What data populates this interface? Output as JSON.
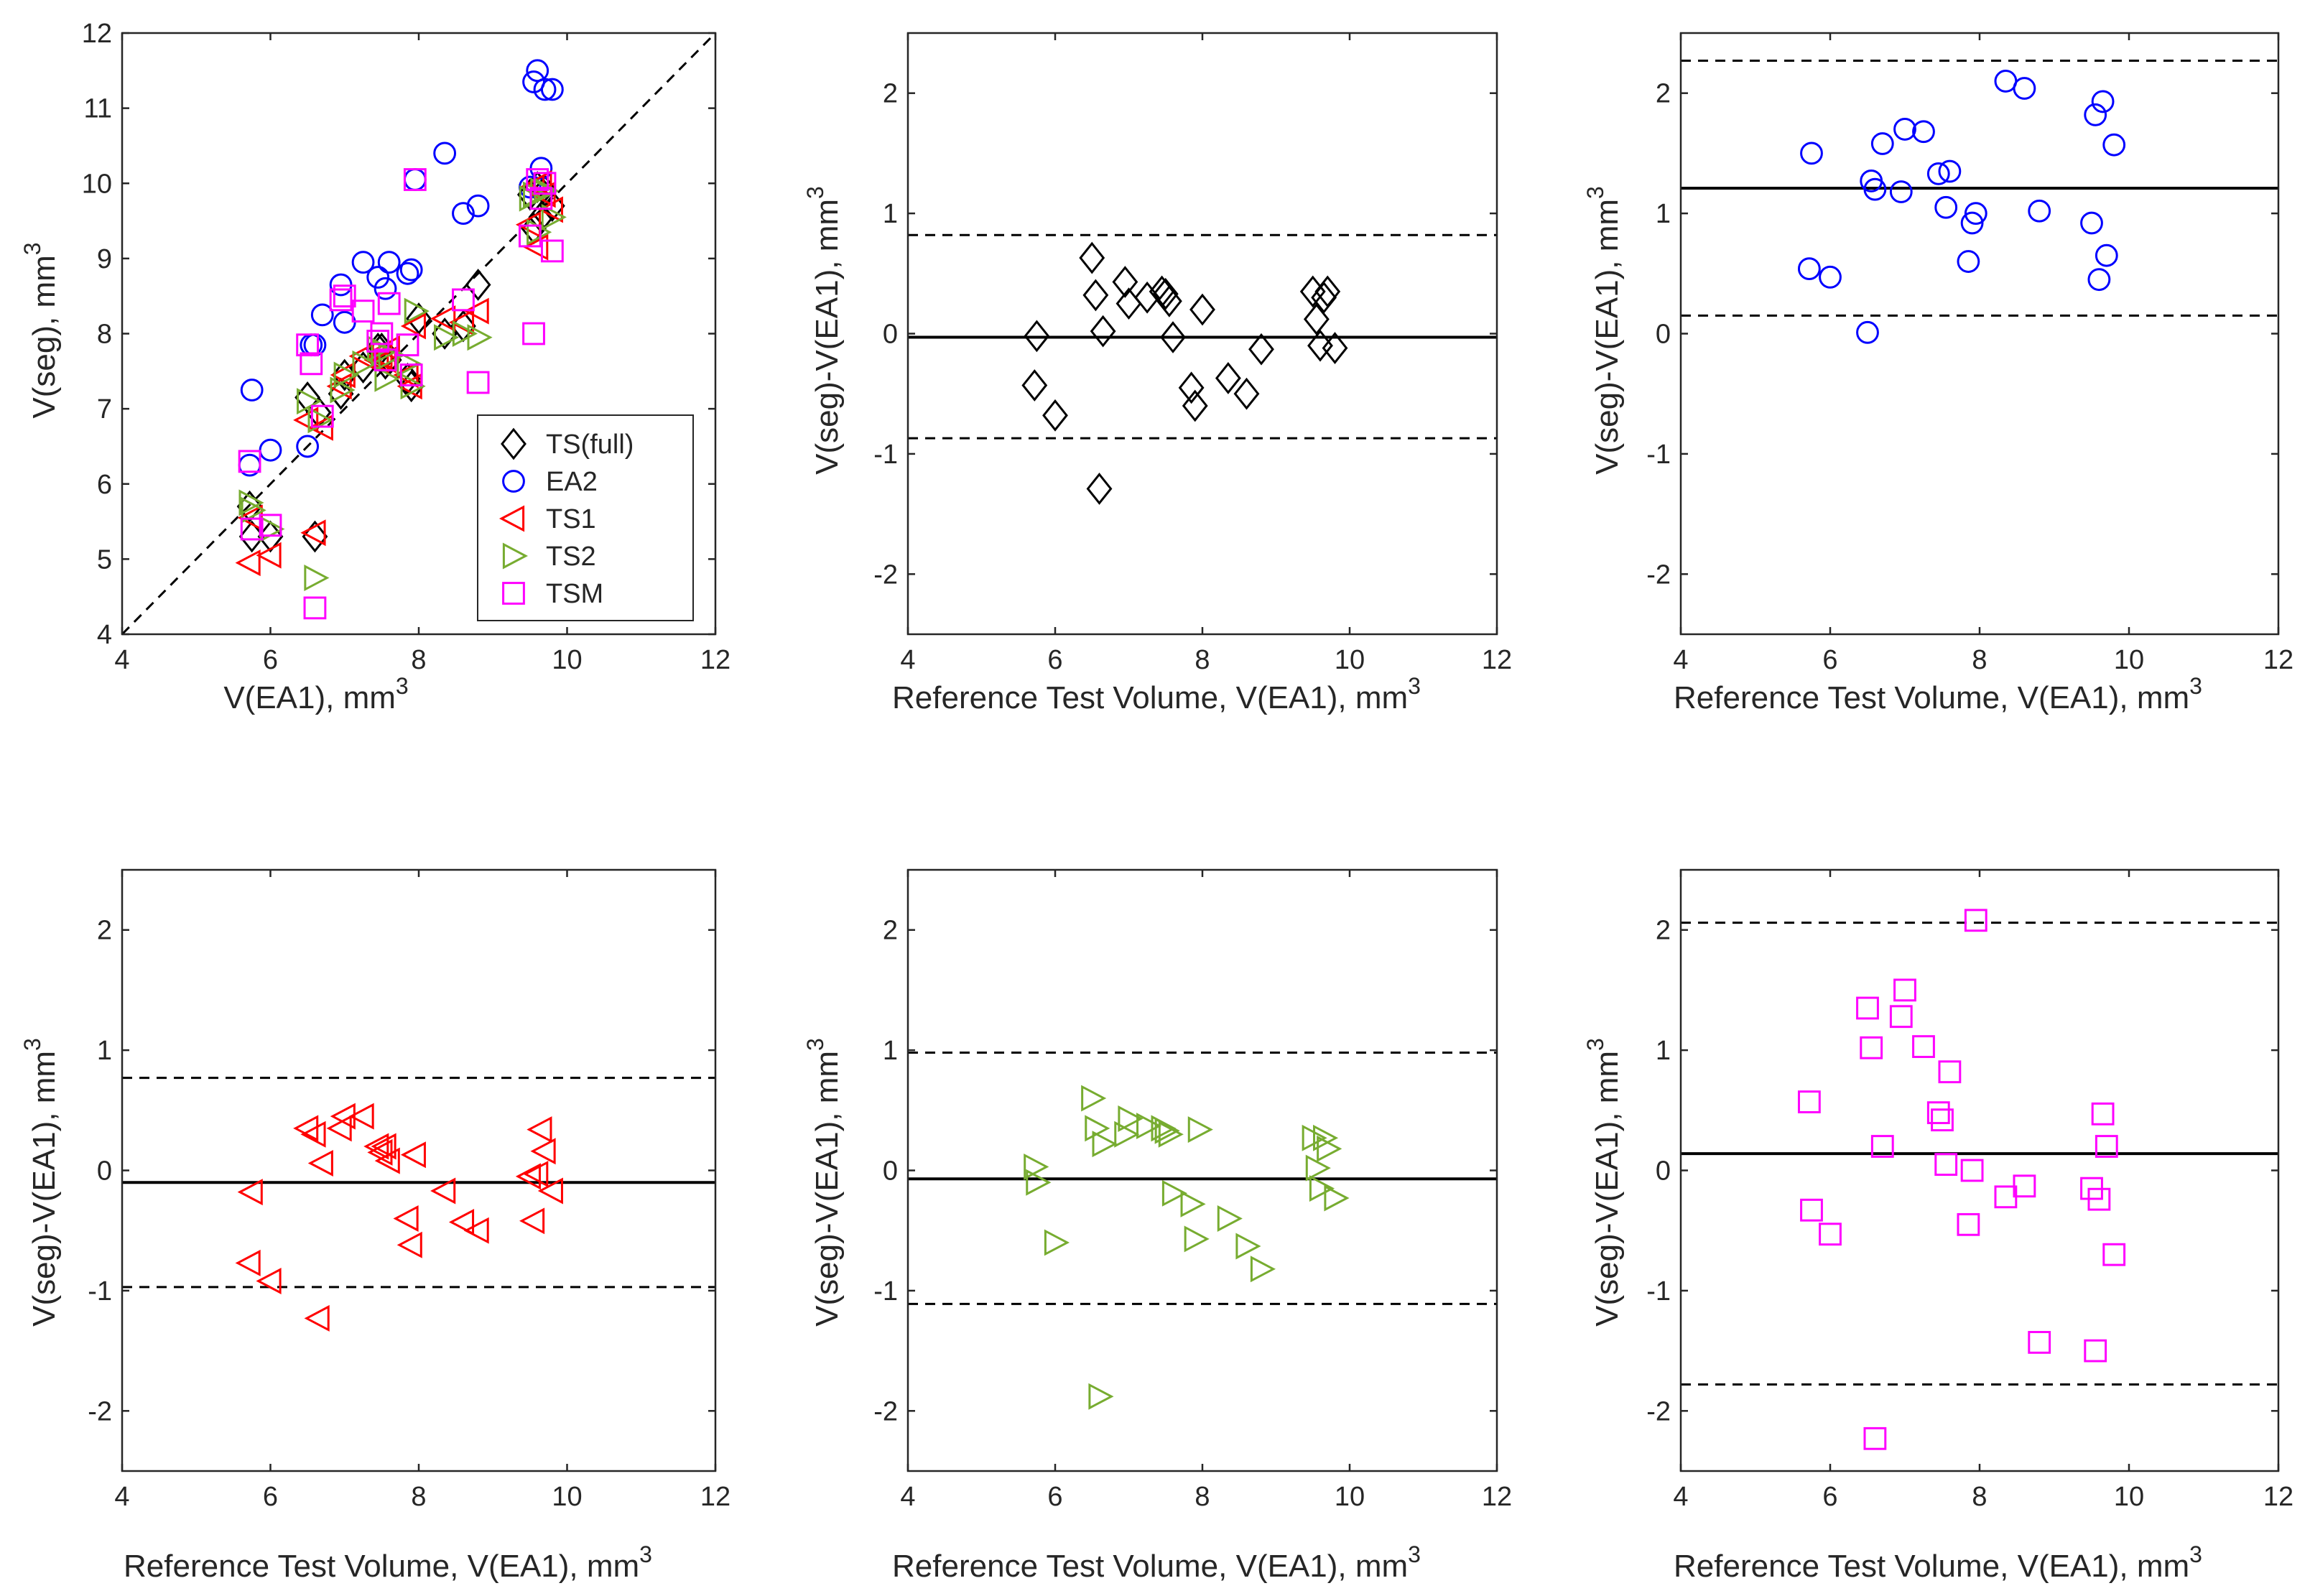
{
  "chart_data": [
    {
      "id": "p1",
      "type": "scatter",
      "xlabel": "V(EA1), mm",
      "xlabel_sup": "3",
      "ylabel": "V(seg), mm",
      "ylabel_sup": "3",
      "xlim": [
        4,
        12
      ],
      "ylim": [
        4,
        12
      ],
      "xticks": [
        4,
        6,
        8,
        10,
        12
      ],
      "yticks": [
        4,
        5,
        6,
        7,
        8,
        9,
        10,
        11,
        12
      ],
      "identity_line": true,
      "legend": {
        "placement": "bottom-right",
        "entries": [
          {
            "label": "TS(full)",
            "marker": "diamond",
            "color": "#000000"
          },
          {
            "label": "EA2",
            "marker": "circle",
            "color": "#0000ff"
          },
          {
            "label": "TS1",
            "marker": "triangle-left",
            "color": "#ff0000"
          },
          {
            "label": "TS2",
            "marker": "triangle-right",
            "color": "#77ac30"
          },
          {
            "label": "TSM",
            "marker": "square",
            "color": "#ff00ff"
          }
        ]
      },
      "series": [
        {
          "name": "TS(full)",
          "marker": "diamond",
          "color": "#000000",
          "x": [
            5.72,
            5.75,
            6.0,
            6.5,
            6.6,
            6.65,
            6.95,
            7.0,
            7.25,
            7.45,
            7.5,
            7.55,
            7.6,
            7.85,
            7.9,
            8.0,
            8.35,
            8.6,
            8.8,
            9.5,
            9.55,
            9.6,
            9.65,
            9.7,
            9.8
          ],
          "y": [
            5.7,
            5.3,
            5.3,
            7.15,
            5.3,
            6.95,
            7.2,
            7.45,
            7.55,
            7.8,
            7.8,
            7.6,
            7.65,
            7.4,
            7.3,
            8.2,
            8.0,
            8.1,
            8.65,
            9.85,
            9.4,
            9.95,
            9.55,
            9.9,
            9.7
          ]
        },
        {
          "name": "EA2",
          "marker": "circle",
          "color": "#0000ff",
          "x": [
            5.72,
            5.75,
            6.0,
            6.5,
            6.55,
            6.6,
            6.7,
            6.95,
            7.0,
            7.25,
            7.45,
            7.55,
            7.6,
            7.85,
            7.9,
            7.95,
            8.35,
            8.6,
            8.8,
            9.5,
            9.55,
            9.6,
            9.65,
            9.7,
            9.8
          ],
          "y": [
            6.25,
            7.25,
            6.45,
            6.5,
            7.85,
            7.85,
            8.25,
            8.65,
            8.15,
            8.95,
            8.75,
            8.6,
            8.95,
            8.8,
            8.85,
            10.05,
            10.4,
            9.6,
            9.7,
            9.95,
            11.35,
            11.5,
            10.2,
            11.25,
            11.25
          ]
        },
        {
          "name": "TS1",
          "marker": "triangle-left",
          "color": "#ff0000",
          "x": [
            5.72,
            5.75,
            6.0,
            6.5,
            6.6,
            6.7,
            6.95,
            7.0,
            7.25,
            7.45,
            7.5,
            7.55,
            7.6,
            7.85,
            7.9,
            7.95,
            8.35,
            8.6,
            8.8,
            9.5,
            9.55,
            9.6,
            9.65,
            9.7,
            9.8
          ],
          "y": [
            4.95,
            5.55,
            5.05,
            6.85,
            5.35,
            6.75,
            7.3,
            7.45,
            7.7,
            7.65,
            7.7,
            7.65,
            7.8,
            7.45,
            7.3,
            8.1,
            8.2,
            8.15,
            8.3,
            9.45,
            9.95,
            9.15,
            10.0,
            9.85,
            9.65
          ]
        },
        {
          "name": "TS2",
          "marker": "triangle-right",
          "color": "#77ac30",
          "x": [
            5.72,
            5.75,
            6.0,
            6.5,
            6.6,
            6.65,
            6.95,
            7.0,
            7.25,
            7.45,
            7.5,
            7.55,
            7.6,
            7.85,
            7.9,
            7.95,
            8.35,
            8.6,
            8.8,
            9.5,
            9.55,
            9.6,
            9.65,
            9.7,
            9.8
          ],
          "y": [
            5.75,
            5.65,
            5.4,
            7.1,
            4.75,
            6.85,
            7.25,
            7.45,
            7.6,
            7.8,
            7.75,
            7.4,
            7.7,
            7.6,
            7.3,
            8.3,
            7.95,
            8.0,
            7.95,
            9.8,
            9.85,
            9.35,
            9.9,
            9.9,
            9.55
          ]
        },
        {
          "name": "TSM",
          "marker": "square",
          "color": "#ff00ff",
          "x": [
            5.72,
            5.75,
            6.0,
            6.5,
            6.55,
            6.6,
            6.7,
            6.95,
            7.0,
            7.25,
            7.45,
            7.5,
            7.55,
            7.6,
            7.85,
            7.9,
            7.95,
            8.6,
            8.8,
            9.5,
            9.55,
            9.6,
            9.65,
            9.7,
            9.8
          ],
          "y": [
            6.3,
            5.4,
            5.45,
            7.85,
            7.6,
            4.35,
            6.9,
            8.45,
            8.5,
            8.3,
            7.9,
            8.0,
            7.65,
            8.4,
            7.85,
            7.45,
            10.05,
            8.45,
            7.35,
            9.3,
            8.0,
            10.05,
            9.8,
            10.0,
            9.1
          ]
        }
      ]
    },
    {
      "id": "p2",
      "type": "scatter",
      "marker": "diamond",
      "color": "#000000",
      "xlabel": "Reference Test Volume, V(EA1), mm",
      "xlabel_sup": "3",
      "ylabel": "V(seg)-V(EA1), mm",
      "ylabel_sup": "3",
      "xlim": [
        4,
        12
      ],
      "ylim": [
        -2.5,
        2.5
      ],
      "xticks": [
        4,
        6,
        8,
        10,
        12
      ],
      "yticks": [
        -2,
        -1,
        0,
        1,
        2
      ],
      "mean": -0.03,
      "loa": [
        0.82,
        -0.87
      ],
      "x": [
        5.75,
        5.72,
        6.0,
        6.5,
        6.55,
        6.65,
        6.6,
        6.95,
        7.0,
        7.25,
        7.45,
        7.5,
        7.55,
        7.6,
        7.85,
        7.9,
        8.0,
        8.35,
        8.6,
        8.8,
        9.5,
        9.55,
        9.6,
        9.65,
        9.7,
        9.8
      ],
      "y": [
        -0.02,
        -0.43,
        -0.68,
        0.63,
        0.32,
        0.02,
        -1.29,
        0.43,
        0.25,
        0.3,
        0.35,
        0.33,
        0.27,
        -0.03,
        -0.45,
        -0.6,
        0.2,
        -0.37,
        -0.5,
        -0.13,
        0.35,
        0.12,
        -0.1,
        0.3,
        0.35,
        -0.12
      ]
    },
    {
      "id": "p3",
      "type": "scatter",
      "marker": "circle",
      "color": "#0000ff",
      "xlabel": "Reference Test Volume, V(EA1), mm",
      "xlabel_sup": "3",
      "ylabel": "V(seg)-V(EA1), mm",
      "ylabel_sup": "3",
      "xlim": [
        4,
        12
      ],
      "ylim": [
        -2.5,
        2.5
      ],
      "xticks": [
        4,
        6,
        8,
        10,
        12
      ],
      "yticks": [
        -2,
        -1,
        0,
        1,
        2
      ],
      "mean": 1.21,
      "loa": [
        2.27,
        0.15
      ],
      "x": [
        5.75,
        5.72,
        6.0,
        6.5,
        6.55,
        6.6,
        6.7,
        6.95,
        7.0,
        7.25,
        7.45,
        7.55,
        7.6,
        7.85,
        7.9,
        7.95,
        8.35,
        8.6,
        8.8,
        9.5,
        9.55,
        9.6,
        9.65,
        9.7,
        9.8
      ],
      "y": [
        1.5,
        0.54,
        0.47,
        0.01,
        1.27,
        1.2,
        1.58,
        1.18,
        1.7,
        1.68,
        1.33,
        1.05,
        1.35,
        0.6,
        0.92,
        1.0,
        2.1,
        2.04,
        1.02,
        0.92,
        1.82,
        0.45,
        1.93,
        0.65,
        1.57
      ]
    },
    {
      "id": "p4",
      "type": "scatter",
      "marker": "triangle-left",
      "color": "#ff0000",
      "xlabel": "Reference Test Volume, V(EA1), mm",
      "xlabel_sup": "3",
      "ylabel": "V(seg)-V(EA1), mm",
      "ylabel_sup": "3",
      "xlim": [
        4,
        12
      ],
      "ylim": [
        -2.5,
        2.5
      ],
      "xticks": [
        4,
        6,
        8,
        10,
        12
      ],
      "yticks": [
        -2,
        -1,
        0,
        1,
        2
      ],
      "mean": -0.1,
      "loa": [
        0.77,
        -0.97
      ],
      "x": [
        5.72,
        5.75,
        6.0,
        6.5,
        6.6,
        6.65,
        6.7,
        6.95,
        7.0,
        7.25,
        7.45,
        7.5,
        7.55,
        7.6,
        7.85,
        7.9,
        7.95,
        8.35,
        8.6,
        8.8,
        9.5,
        9.55,
        9.6,
        9.65,
        9.7,
        9.8
      ],
      "y": [
        -0.77,
        -0.18,
        -0.92,
        0.35,
        0.3,
        -1.23,
        0.06,
        0.35,
        0.45,
        0.45,
        0.2,
        0.15,
        0.2,
        0.08,
        -0.4,
        -0.62,
        0.13,
        -0.17,
        -0.43,
        -0.5,
        -0.05,
        -0.42,
        -0.03,
        0.34,
        0.16,
        -0.17
      ]
    },
    {
      "id": "p5",
      "type": "scatter",
      "marker": "triangle-right",
      "color": "#77ac30",
      "xlabel": "Reference Test Volume, V(EA1), mm",
      "xlabel_sup": "3",
      "ylabel": "V(seg)-V(EA1), mm",
      "ylabel_sup": "3",
      "xlim": [
        4,
        12
      ],
      "ylim": [
        -2.5,
        2.5
      ],
      "xticks": [
        4,
        6,
        8,
        10,
        12
      ],
      "yticks": [
        -2,
        -1,
        0,
        1,
        2
      ],
      "mean": -0.07,
      "loa": [
        0.98,
        -1.11
      ],
      "x": [
        5.72,
        5.75,
        6.0,
        6.5,
        6.55,
        6.6,
        6.65,
        6.95,
        7.0,
        7.25,
        7.45,
        7.5,
        7.55,
        7.6,
        7.85,
        7.9,
        7.95,
        8.35,
        8.6,
        8.8,
        9.5,
        9.55,
        9.6,
        9.65,
        9.7,
        9.8
      ],
      "y": [
        0.03,
        -0.1,
        -0.6,
        0.6,
        0.35,
        -1.88,
        0.22,
        0.3,
        0.43,
        0.37,
        0.35,
        0.33,
        0.3,
        -0.19,
        -0.28,
        -0.57,
        0.34,
        -0.4,
        -0.63,
        -0.82,
        0.27,
        0.02,
        -0.15,
        0.27,
        0.18,
        -0.23
      ]
    },
    {
      "id": "p6",
      "type": "scatter",
      "marker": "square",
      "color": "#ff00ff",
      "xlabel": "Reference Test Volume, V(EA1), mm",
      "xlabel_sup": "3",
      "ylabel": "V(seg)-V(EA1), mm",
      "ylabel_sup": "3",
      "xlim": [
        4,
        12
      ],
      "ylim": [
        -2.5,
        2.5
      ],
      "xticks": [
        4,
        6,
        8,
        10,
        12
      ],
      "yticks": [
        -2,
        -1,
        0,
        1,
        2
      ],
      "mean": 0.14,
      "loa": [
        2.06,
        -1.78
      ],
      "x": [
        5.72,
        5.75,
        6.0,
        6.5,
        6.55,
        6.6,
        6.7,
        6.95,
        7.0,
        7.25,
        7.45,
        7.5,
        7.55,
        7.6,
        7.85,
        7.9,
        7.95,
        8.35,
        8.6,
        8.8,
        9.5,
        9.55,
        9.6,
        9.65,
        9.7,
        9.8
      ],
      "y": [
        0.57,
        -0.33,
        -0.53,
        1.35,
        1.02,
        -2.23,
        0.2,
        1.28,
        1.5,
        1.03,
        0.48,
        0.42,
        0.05,
        0.82,
        -0.45,
        0.0,
        2.08,
        -0.22,
        -0.13,
        -1.43,
        -0.15,
        -1.5,
        -0.24,
        0.47,
        0.2,
        -0.7
      ]
    }
  ]
}
